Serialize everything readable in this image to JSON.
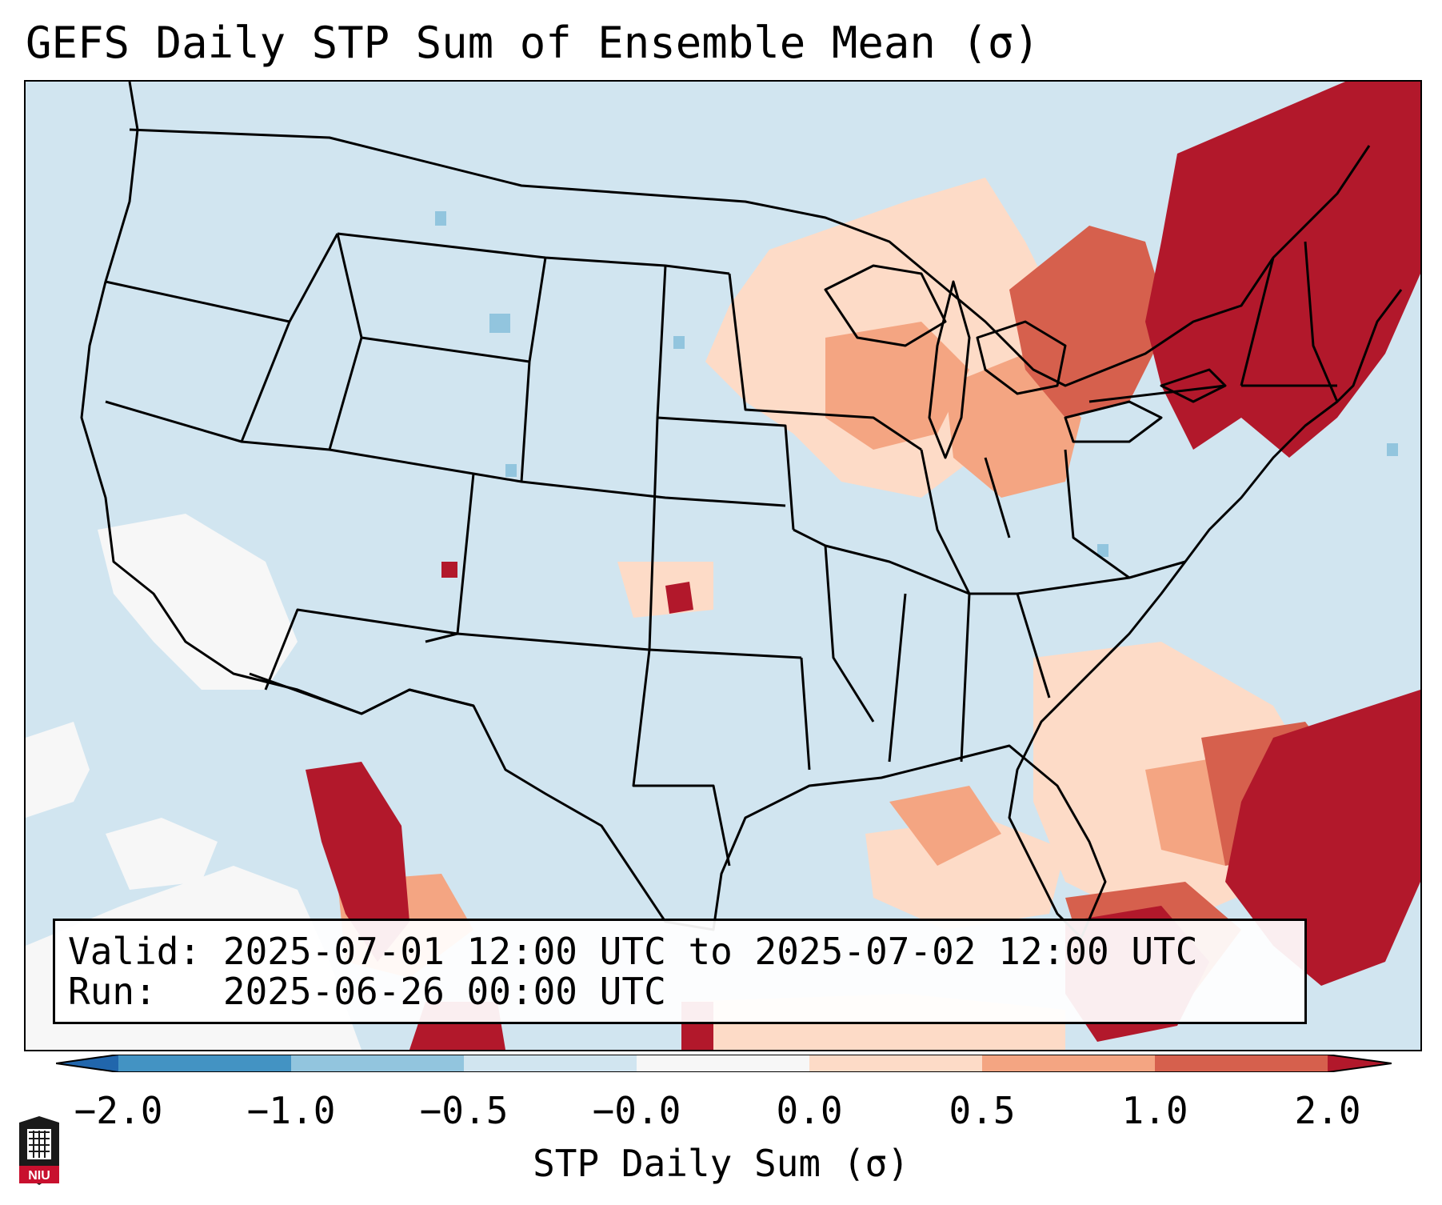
{
  "title": "GEFS Daily STP Sum of Ensemble Mean (σ)",
  "info": {
    "valid_label": "Valid:",
    "valid_value": "2025-07-01 12:00 UTC to 2025-07-02 12:00 UTC",
    "run_label": "Run:",
    "run_value": "2025-06-26 00:00 UTC"
  },
  "colorbar": {
    "label": "STP Daily Sum (σ)",
    "ticks": [
      "−2.0",
      "−1.0",
      "−0.5",
      "−0.0",
      "0.0",
      "0.5",
      "1.0",
      "2.0"
    ],
    "colors": [
      "#2166ac",
      "#4393c3",
      "#92c5de",
      "#d1e5f0",
      "#f7f7f7",
      "#fddbc7",
      "#f4a582",
      "#d6604d",
      "#b2182b"
    ]
  },
  "map": {
    "ocean_color": "#d1e5f0",
    "boundary_color": "#000000"
  },
  "logo": {
    "text": "NIU",
    "icon": "university-shield-icon"
  }
}
